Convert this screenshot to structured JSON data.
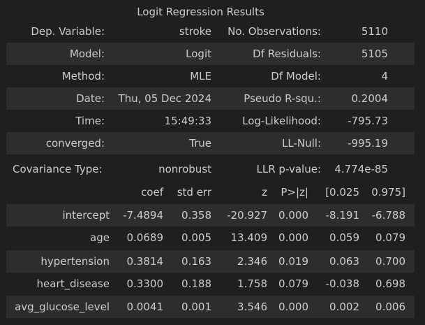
{
  "caption": "Logit Regression Results",
  "summary": [
    {
      "l1": "Dep. Variable:",
      "v1": "stroke",
      "l2": "No. Observations:",
      "v2": "5110"
    },
    {
      "l1": "Model:",
      "v1": "Logit",
      "l2": "Df Residuals:",
      "v2": "5105"
    },
    {
      "l1": "Method:",
      "v1": "MLE",
      "l2": "Df Model:",
      "v2": "4"
    },
    {
      "l1": "Date:",
      "v1": "Thu, 05 Dec 2024",
      "l2": "Pseudo R-squ.:",
      "v2": "0.2004"
    },
    {
      "l1": "Time:",
      "v1": "15:49:33",
      "l2": "Log-Likelihood:",
      "v2": "-795.73"
    },
    {
      "l1": "converged:",
      "v1": "True",
      "l2": "LL-Null:",
      "v2": "-995.19"
    },
    {
      "l1": "Covariance Type:",
      "v1": "nonrobust",
      "l2": "LLR p-value:",
      "v2": "4.774e-85"
    }
  ],
  "coef_header": [
    "coef",
    "std err",
    "z",
    "P>|z|",
    "[0.025",
    "0.975]"
  ],
  "coef_rows": [
    {
      "name": "intercept",
      "coef": "-7.4894",
      "se": "0.358",
      "z": "-20.927",
      "p": "0.000",
      "lo": "-8.191",
      "hi": "-6.788"
    },
    {
      "name": "age",
      "coef": "0.0689",
      "se": "0.005",
      "z": "13.409",
      "p": "0.000",
      "lo": "0.059",
      "hi": "0.079"
    },
    {
      "name": "hypertension",
      "coef": "0.3814",
      "se": "0.163",
      "z": "2.346",
      "p": "0.019",
      "lo": "0.063",
      "hi": "0.700"
    },
    {
      "name": "heart_disease",
      "coef": "0.3300",
      "se": "0.188",
      "z": "1.758",
      "p": "0.079",
      "lo": "-0.038",
      "hi": "0.698"
    },
    {
      "name": "avg_glucose_level",
      "coef": "0.0041",
      "se": "0.001",
      "z": "3.546",
      "p": "0.000",
      "lo": "0.002",
      "hi": "0.006"
    }
  ]
}
